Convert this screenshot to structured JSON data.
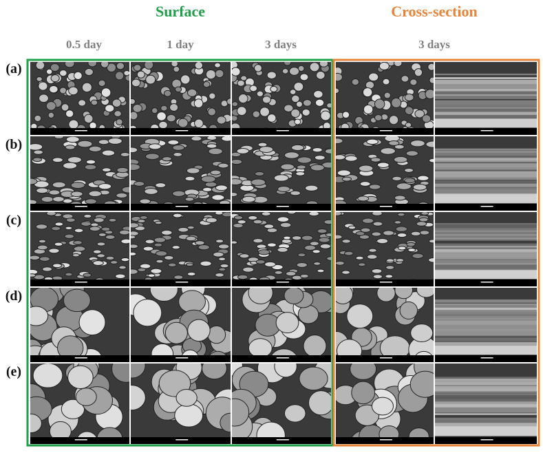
{
  "headers": {
    "surface": "Surface",
    "cross_section": "Cross-section"
  },
  "columns": [
    "0.5 day",
    "1 day",
    "3 days",
    "3 days"
  ],
  "rows": [
    "(a)",
    "(b)",
    "(c)",
    "(d)",
    "(e)"
  ]
}
